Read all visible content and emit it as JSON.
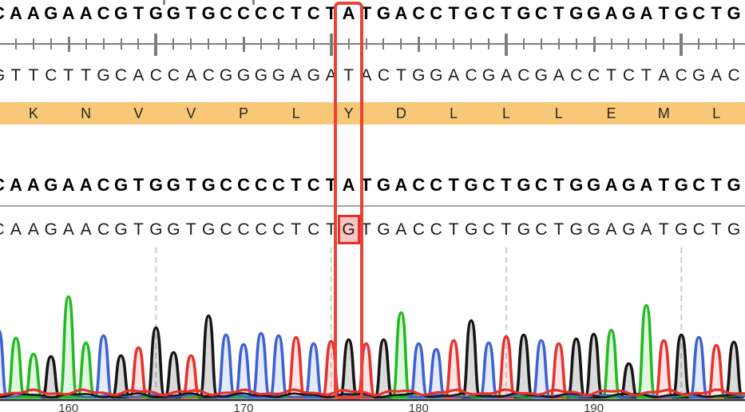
{
  "app": {
    "name": "sequence-alignment-chromatogram-viewer"
  },
  "colors": {
    "trace": {
      "A": "#21bb21",
      "C": "#3f62d2",
      "G": "#161616",
      "T": "#e5332c"
    },
    "trace_fill_alpha": 0.13,
    "aa_band": "#f8c878",
    "mismatch_box_border": "#e8423a",
    "mismatch_cell_border": "#df3328",
    "mismatch_cell_fill": "#fac4c0",
    "ruler": "#7d7d7d",
    "divider": "#a2a2a2",
    "dashed_gridline": "#c8c8c8",
    "axis": "#2e2e2e",
    "tick_label": "#3a3a3a"
  },
  "sequences": {
    "reference_top": "CAAGAACGTGGTGCCCCTCTATGACCTGCTGCTGGAGATGCTG",
    "complement": "GTTCTTGCACCACGGGGAGATACTGGACGACGACCTCTACGAC",
    "reference_mid": "CAAGAACGTGGTGCCCCTCTATGACCTGCTGCTGGAGATGCTG",
    "read": "CAAGAACGTGGTGCCCCTCTGTGACCTGCTGCTGGAGATGCTG",
    "mismatch_index": 20,
    "reference_base_at_mismatch": "A",
    "read_base_at_mismatch": "G"
  },
  "translation": {
    "residues": [
      {
        "aa": "K",
        "i": 2
      },
      {
        "aa": "N",
        "i": 5
      },
      {
        "aa": "V",
        "i": 8
      },
      {
        "aa": "V",
        "i": 11
      },
      {
        "aa": "P",
        "i": 14
      },
      {
        "aa": "L",
        "i": 17
      },
      {
        "aa": "Y",
        "i": 20
      },
      {
        "aa": "D",
        "i": 23
      },
      {
        "aa": "L",
        "i": 26
      },
      {
        "aa": "L",
        "i": 29
      },
      {
        "aa": "L",
        "i": 32
      },
      {
        "aa": "E",
        "i": 35
      },
      {
        "aa": "M",
        "i": 38
      },
      {
        "aa": "L",
        "i": 41
      }
    ]
  },
  "chart_data": {
    "type": "area",
    "subtype": "sanger-chromatogram",
    "title": "",
    "xlabel": "",
    "ylabel": "",
    "grid": "dashed-vertical",
    "legend": "none",
    "bases": "CAAGAACGTGGTGCCCCTCTGTGACCTGCTGCTGGAGATGCTG",
    "peak_heights": [
      84,
      74,
      54,
      51,
      126,
      68,
      77,
      52,
      62,
      87,
      56,
      52,
      102,
      78,
      66,
      80,
      77,
      75,
      67,
      70,
      72,
      67,
      72,
      106,
      67,
      60,
      71,
      96,
      68,
      76,
      78,
      71,
      67,
      73,
      79,
      84,
      42,
      115,
      71,
      78,
      75,
      65,
      69
    ],
    "x_tick_labels": [
      "160",
      "170",
      "180",
      "190"
    ],
    "x_tick_indices": [
      4,
      14,
      24,
      34
    ],
    "gridline_indices": [
      9,
      19,
      29,
      39
    ],
    "base_color_legend": {
      "A": "green",
      "C": "blue",
      "G": "black",
      "T": "red"
    }
  }
}
